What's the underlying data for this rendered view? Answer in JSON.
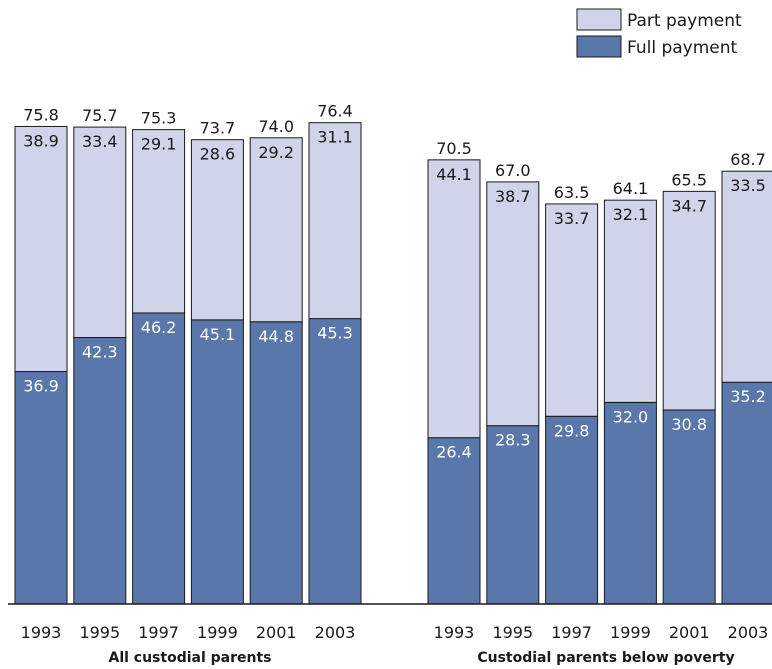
{
  "chart_data": {
    "type": "bar",
    "stacked": true,
    "ylim": [
      0,
      80
    ],
    "grid": false,
    "legend_placement": "top-right",
    "colors": {
      "part": "#d0d4ea",
      "full": "#5a77ab",
      "outline": "#1a1a1a"
    },
    "series": [
      {
        "name": "Part payment",
        "key": "part"
      },
      {
        "name": "Full payment",
        "key": "full"
      }
    ],
    "groups": [
      {
        "label": "All custodial parents",
        "categories": [
          "1993",
          "1995",
          "1997",
          "1999",
          "2001",
          "2003"
        ],
        "full": [
          36.9,
          42.3,
          46.2,
          45.1,
          44.8,
          45.3
        ],
        "part": [
          38.9,
          33.4,
          29.1,
          28.6,
          29.2,
          31.1
        ],
        "totals": [
          "75.8",
          "75.7",
          "75.3",
          "73.7",
          "74.0",
          "76.4"
        ]
      },
      {
        "label": "Custodial parents below poverty",
        "categories": [
          "1993",
          "1995",
          "1997",
          "1999",
          "2001",
          "2003"
        ],
        "full": [
          26.4,
          28.3,
          29.8,
          32.0,
          30.8,
          35.2
        ],
        "part": [
          44.1,
          38.7,
          33.7,
          32.1,
          34.7,
          33.5
        ],
        "totals": [
          "70.5",
          "67.0",
          "63.5",
          "64.1",
          "65.5",
          "68.7"
        ]
      }
    ]
  }
}
